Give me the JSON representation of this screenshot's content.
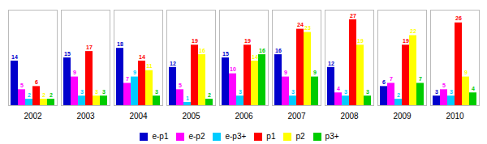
{
  "chart_data": {
    "type": "bar",
    "categories": [
      "2002",
      "2003",
      "2004",
      "2005",
      "2006",
      "2007",
      "2008",
      "2009",
      "2010"
    ],
    "series": [
      {
        "name": "e-p1",
        "color": "#0000CC",
        "values": [
          14,
          15,
          18,
          12,
          15,
          16,
          12,
          6,
          3
        ]
      },
      {
        "name": "e-p2",
        "color": "#FF00FF",
        "values": [
          5,
          9,
          7,
          5,
          10,
          9,
          4,
          7,
          5
        ]
      },
      {
        "name": "e-p3+",
        "color": "#00CCFF",
        "values": [
          2,
          3,
          9,
          1,
          3,
          3,
          3,
          2,
          3
        ]
      },
      {
        "name": "p1",
        "color": "#FF0000",
        "values": [
          6,
          17,
          14,
          19,
          19,
          24,
          27,
          19,
          26
        ]
      },
      {
        "name": "p2",
        "color": "#FFFF00",
        "values": [
          2,
          3,
          11,
          16,
          14,
          23,
          19,
          22,
          9
        ]
      },
      {
        "name": "p3+",
        "color": "#00CC00",
        "values": [
          2,
          3,
          3,
          2,
          16,
          9,
          3,
          7,
          4
        ]
      }
    ],
    "ylim": [
      0,
      30
    ],
    "tick_labels": "x",
    "data_labels": true,
    "grid": false,
    "legend": "bottom"
  }
}
